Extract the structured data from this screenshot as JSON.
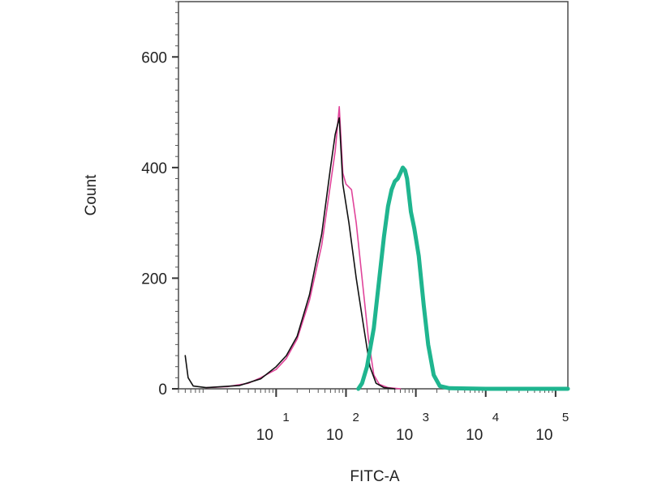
{
  "chart_data": {
    "type": "line",
    "xlabel": "FITC-A",
    "ylabel": "Count",
    "x_scale": "log",
    "xlim": [
      0.4,
      150000
    ],
    "ylim": [
      0,
      700
    ],
    "x_ticks": [
      {
        "value": 10,
        "base": "10",
        "exp": "1"
      },
      {
        "value": 100,
        "base": "10",
        "exp": "2"
      },
      {
        "value": 1000,
        "base": "10",
        "exp": "3"
      },
      {
        "value": 10000,
        "base": "10",
        "exp": "4"
      },
      {
        "value": 100000,
        "base": "10",
        "exp": "5"
      }
    ],
    "y_ticks": [
      0,
      200,
      400,
      600
    ],
    "grid": false,
    "series": [
      {
        "color": "#e0449a",
        "stroke": "thin",
        "points": [
          [
            1,
            2
          ],
          [
            2,
            4
          ],
          [
            4,
            10
          ],
          [
            6,
            20
          ],
          [
            10,
            35
          ],
          [
            14,
            55
          ],
          [
            20,
            90
          ],
          [
            30,
            160
          ],
          [
            45,
            260
          ],
          [
            60,
            370
          ],
          [
            70,
            430
          ],
          [
            80,
            510
          ],
          [
            90,
            390
          ],
          [
            100,
            370
          ],
          [
            120,
            360
          ],
          [
            140,
            300
          ],
          [
            170,
            200
          ],
          [
            210,
            90
          ],
          [
            250,
            25
          ],
          [
            300,
            8
          ],
          [
            400,
            2
          ],
          [
            600,
            0
          ]
        ]
      },
      {
        "color": "#111111",
        "stroke": "thin",
        "points": [
          [
            0.5,
            60
          ],
          [
            0.55,
            20
          ],
          [
            0.65,
            5
          ],
          [
            1,
            2
          ],
          [
            3,
            6
          ],
          [
            6,
            18
          ],
          [
            10,
            40
          ],
          [
            14,
            60
          ],
          [
            20,
            95
          ],
          [
            30,
            170
          ],
          [
            45,
            280
          ],
          [
            60,
            400
          ],
          [
            70,
            460
          ],
          [
            80,
            490
          ],
          [
            90,
            370
          ],
          [
            110,
            300
          ],
          [
            140,
            200
          ],
          [
            180,
            110
          ],
          [
            220,
            40
          ],
          [
            270,
            10
          ],
          [
            350,
            2
          ],
          [
            500,
            0
          ]
        ]
      },
      {
        "color": "#1fb58f",
        "stroke": "thick",
        "points": [
          [
            150,
            0
          ],
          [
            170,
            10
          ],
          [
            200,
            40
          ],
          [
            250,
            110
          ],
          [
            300,
            200
          ],
          [
            350,
            275
          ],
          [
            400,
            330
          ],
          [
            450,
            360
          ],
          [
            500,
            375
          ],
          [
            550,
            380
          ],
          [
            600,
            390
          ],
          [
            650,
            400
          ],
          [
            700,
            395
          ],
          [
            750,
            380
          ],
          [
            850,
            320
          ],
          [
            950,
            290
          ],
          [
            1100,
            240
          ],
          [
            1300,
            150
          ],
          [
            1500,
            80
          ],
          [
            1800,
            25
          ],
          [
            2200,
            5
          ],
          [
            3000,
            1
          ],
          [
            10000,
            0
          ],
          [
            150000,
            0
          ]
        ]
      }
    ]
  }
}
